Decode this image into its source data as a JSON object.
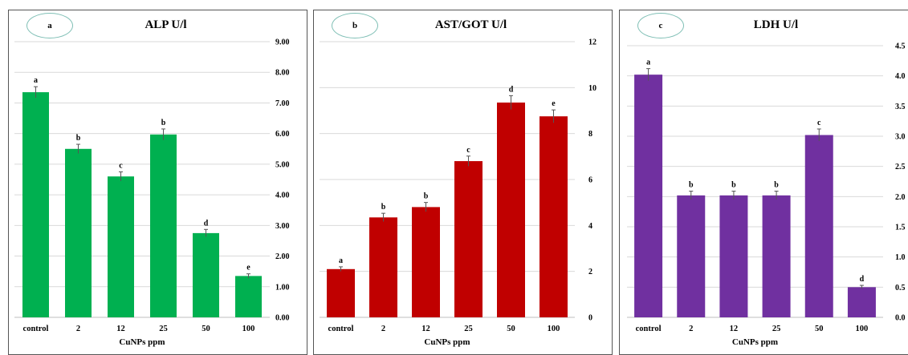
{
  "chart_data": [
    {
      "type": "bar",
      "panel_label": "a",
      "title": "ALP U/l",
      "xlabel": "CuNPs ppm",
      "ylabel": "",
      "categories": [
        "control",
        "2",
        "12",
        "25",
        "50",
        "100"
      ],
      "values": [
        7.35,
        5.5,
        4.6,
        5.97,
        2.75,
        1.35
      ],
      "errors": [
        0.18,
        0.15,
        0.15,
        0.18,
        0.12,
        0.07
      ],
      "letters": [
        "a",
        "b",
        "c",
        "b",
        "d",
        "e"
      ],
      "ylim": [
        0,
        9
      ],
      "yticks": [
        "0.00",
        "1.00",
        "2.00",
        "3.00",
        "4.00",
        "5.00",
        "6.00",
        "7.00",
        "8.00",
        "9.00"
      ],
      "yaxis_side": "right",
      "grid": true,
      "color": "#00b050"
    },
    {
      "type": "bar",
      "panel_label": "b",
      "title": "AST/GOT U/l",
      "xlabel": "CuNPs ppm",
      "ylabel": "",
      "categories": [
        "control",
        "2",
        "12",
        "25",
        "50",
        "100"
      ],
      "values": [
        2.1,
        4.35,
        4.8,
        6.8,
        9.35,
        8.75
      ],
      "errors": [
        0.1,
        0.18,
        0.2,
        0.22,
        0.3,
        0.28
      ],
      "letters": [
        "a",
        "b",
        "b",
        "c",
        "d",
        "e"
      ],
      "ylim": [
        0,
        12
      ],
      "yticks": [
        "0",
        "2",
        "4",
        "6",
        "8",
        "10",
        "12"
      ],
      "yaxis_side": "right",
      "grid": true,
      "color": "#c00000"
    },
    {
      "type": "bar",
      "panel_label": "c",
      "title": "LDH U/l",
      "xlabel": "CuNPs ppm",
      "ylabel": "",
      "categories": [
        "control",
        "2",
        "12",
        "25",
        "50",
        "100"
      ],
      "values": [
        4.02,
        2.02,
        2.02,
        2.02,
        3.02,
        0.5
      ],
      "errors": [
        0.1,
        0.07,
        0.07,
        0.07,
        0.1,
        0.03
      ],
      "letters": [
        "a",
        "b",
        "b",
        "b",
        "c",
        "d"
      ],
      "ylim": [
        0,
        4.5
      ],
      "yticks": [
        "0.0",
        "0.5",
        "1.0",
        "1.5",
        "2.0",
        "2.5",
        "3.0",
        "3.5",
        "4.0",
        "4.5"
      ],
      "yaxis_side": "right",
      "grid": true,
      "color": "#7030a0"
    }
  ]
}
